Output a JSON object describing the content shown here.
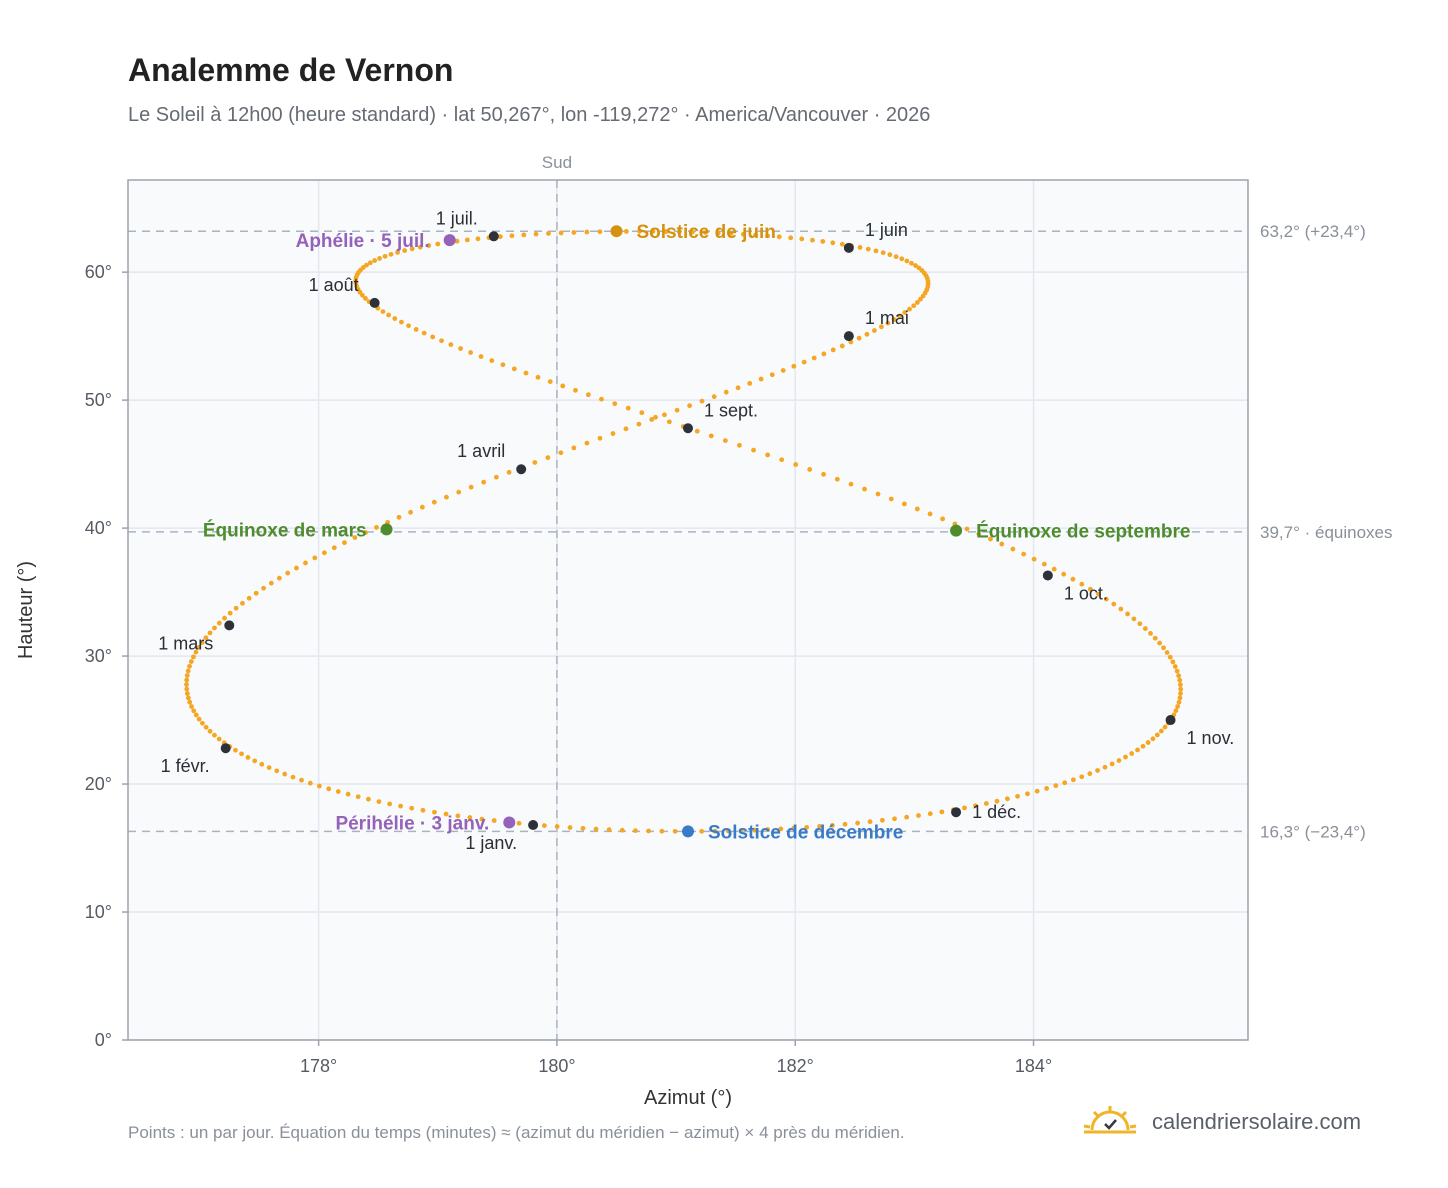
{
  "header": {
    "title": "Analemme de Vernon",
    "subtitle": "Le Soleil à 12h00 (heure standard) · lat 50,267°, lon -119,272° · America/Vancouver · 2026"
  },
  "footer": {
    "note": "Points : un par jour. Équation du temps (minutes) ≈ (azimut du méridien − azimut) × 4 près du méridien.",
    "brand": "calendriersolaire.com",
    "brand_icon": "sun-logo-icon"
  },
  "chart_data": {
    "type": "scatter",
    "xlabel": "Azimut (°)",
    "ylabel": "Hauteur (°)",
    "xlim": [
      176.4,
      185.8
    ],
    "ylim": [
      0,
      67.2
    ],
    "x_ticks": [
      {
        "value": 178,
        "label": "178°"
      },
      {
        "value": 180,
        "label": "180°"
      },
      {
        "value": 182,
        "label": "182°"
      },
      {
        "value": 184,
        "label": "184°"
      }
    ],
    "y_ticks": [
      {
        "value": 0,
        "label": "0°"
      },
      {
        "value": 10,
        "label": "10°"
      },
      {
        "value": 20,
        "label": "20°"
      },
      {
        "value": 30,
        "label": "30°"
      },
      {
        "value": 40,
        "label": "40°"
      },
      {
        "value": 50,
        "label": "50°"
      },
      {
        "value": 60,
        "label": "60°"
      }
    ],
    "grid": true,
    "south_line": {
      "value": 180,
      "label": "Sud"
    },
    "reference_lines": [
      {
        "value": 63.2,
        "label": "63,2° (+23,4°)"
      },
      {
        "value": 39.7,
        "label": "39,7° · équinoxes"
      },
      {
        "value": 16.3,
        "label": "16,3° (−23,4°)"
      }
    ],
    "curve_color": "#f5a623",
    "month_color": "#2d3139",
    "monthly_points": [
      {
        "label": "1 janv.",
        "x": 179.8,
        "y": 16.8
      },
      {
        "label": "1 févr.",
        "x": 177.22,
        "y": 22.8
      },
      {
        "label": "1 mars",
        "x": 177.25,
        "y": 32.4
      },
      {
        "label": "1 avril",
        "x": 179.7,
        "y": 44.6
      },
      {
        "label": "1 mai",
        "x": 182.45,
        "y": 55.0
      },
      {
        "label": "1 juin",
        "x": 182.45,
        "y": 61.9
      },
      {
        "label": "1 juil.",
        "x": 179.47,
        "y": 62.8
      },
      {
        "label": "1 août",
        "x": 178.47,
        "y": 57.6
      },
      {
        "label": "1 sept.",
        "x": 181.1,
        "y": 47.8
      },
      {
        "label": "1 oct.",
        "x": 184.12,
        "y": 36.3
      },
      {
        "label": "1 nov.",
        "x": 185.15,
        "y": 25.0
      },
      {
        "label": "1 déc.",
        "x": 183.35,
        "y": 17.8
      }
    ],
    "events": [
      {
        "label": "Solstice de juin",
        "x": 180.5,
        "y": 63.2,
        "color": "#d4920e"
      },
      {
        "label": "Aphélie · 5 juil.",
        "x": 179.1,
        "y": 62.5,
        "color": "#9462b8"
      },
      {
        "label": "Équinoxe de mars",
        "x": 178.57,
        "y": 39.9,
        "color": "#4e8c2e"
      },
      {
        "label": "Équinoxe de septembre",
        "x": 183.35,
        "y": 39.8,
        "color": "#4e8c2e"
      },
      {
        "label": "Périhélie · 3 janv.",
        "x": 179.6,
        "y": 17.0,
        "color": "#9462b8"
      },
      {
        "label": "Solstice de décembre",
        "x": 181.1,
        "y": 16.3,
        "color": "#3a7bc8"
      }
    ]
  }
}
